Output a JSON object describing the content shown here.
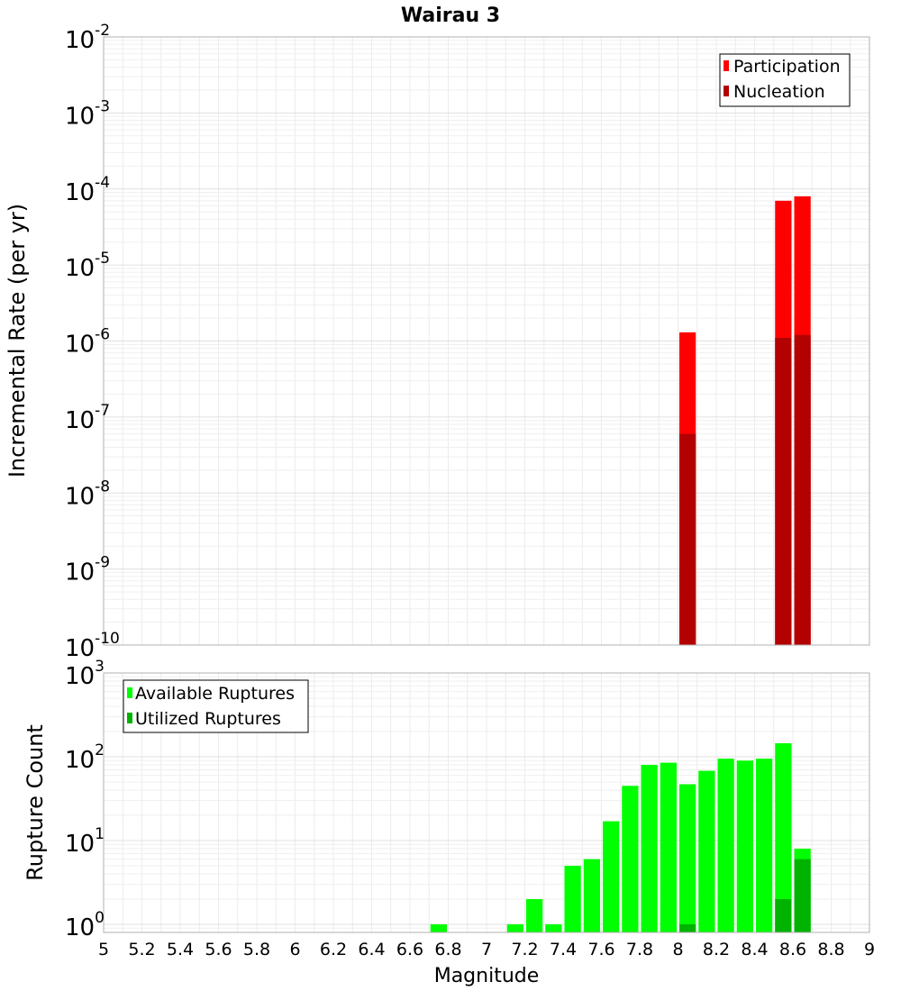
{
  "chart_data": [
    {
      "type": "bar",
      "title": "Wairau 3",
      "ylabel": "Incremental Rate (per yr)",
      "xlabel": "",
      "yscale": "log",
      "ylim": [
        1e-10,
        0.01
      ],
      "xlim": [
        5,
        9
      ],
      "grid": true,
      "legend_position": "top-right",
      "y_tick_labels": [
        {
          "base": "10",
          "exp": "-10",
          "value": 1e-10
        },
        {
          "base": "10",
          "exp": "-9",
          "value": 1e-09
        },
        {
          "base": "10",
          "exp": "-8",
          "value": 1e-08
        },
        {
          "base": "10",
          "exp": "-7",
          "value": 1e-07
        },
        {
          "base": "10",
          "exp": "-6",
          "value": 1e-06
        },
        {
          "base": "10",
          "exp": "-5",
          "value": 1e-05
        },
        {
          "base": "10",
          "exp": "-4",
          "value": 0.0001
        },
        {
          "base": "10",
          "exp": "-3",
          "value": 0.001
        },
        {
          "base": "10",
          "exp": "-2",
          "value": 0.01
        }
      ],
      "series": [
        {
          "name": "Participation",
          "color": "#ff0000",
          "x": [
            8.05,
            8.55,
            8.65
          ],
          "values": [
            1.3e-06,
            7e-05,
            8e-05
          ]
        },
        {
          "name": "Nucleation",
          "color": "#b30000",
          "x": [
            8.05,
            8.55,
            8.65
          ],
          "values": [
            6e-08,
            1.1e-06,
            1.2e-06
          ]
        }
      ]
    },
    {
      "type": "bar",
      "title": "",
      "ylabel": "Rupture Count",
      "xlabel": "Magnitude",
      "yscale": "log",
      "ylim": [
        0.8,
        1000
      ],
      "xlim": [
        5,
        9
      ],
      "grid": true,
      "legend_position": "top-left",
      "y_tick_labels": [
        {
          "base": "10",
          "exp": "0",
          "value": 1
        },
        {
          "base": "10",
          "exp": "1",
          "value": 10
        },
        {
          "base": "10",
          "exp": "2",
          "value": 100
        },
        {
          "base": "10",
          "exp": "3",
          "value": 1000
        }
      ],
      "x_tick_labels": [
        "5",
        "5.2",
        "5.4",
        "5.6",
        "5.8",
        "6",
        "6.2",
        "6.4",
        "6.6",
        "6.8",
        "7",
        "7.2",
        "7.4",
        "7.6",
        "7.8",
        "8",
        "8.2",
        "8.4",
        "8.6",
        "8.8",
        "9"
      ],
      "series": [
        {
          "name": "Available Ruptures",
          "color": "#00ff00",
          "x": [
            6.75,
            7.15,
            7.25,
            7.35,
            7.45,
            7.55,
            7.65,
            7.75,
            7.85,
            7.95,
            8.05,
            8.15,
            8.25,
            8.35,
            8.45,
            8.55,
            8.65
          ],
          "values": [
            1,
            1,
            2,
            1,
            5,
            6,
            17,
            45,
            80,
            85,
            47,
            68,
            95,
            90,
            95,
            145,
            8
          ]
        },
        {
          "name": "Utilized Ruptures",
          "color": "#00b300",
          "x": [
            8.05,
            8.55,
            8.65
          ],
          "values": [
            1,
            2,
            6
          ]
        }
      ]
    }
  ]
}
